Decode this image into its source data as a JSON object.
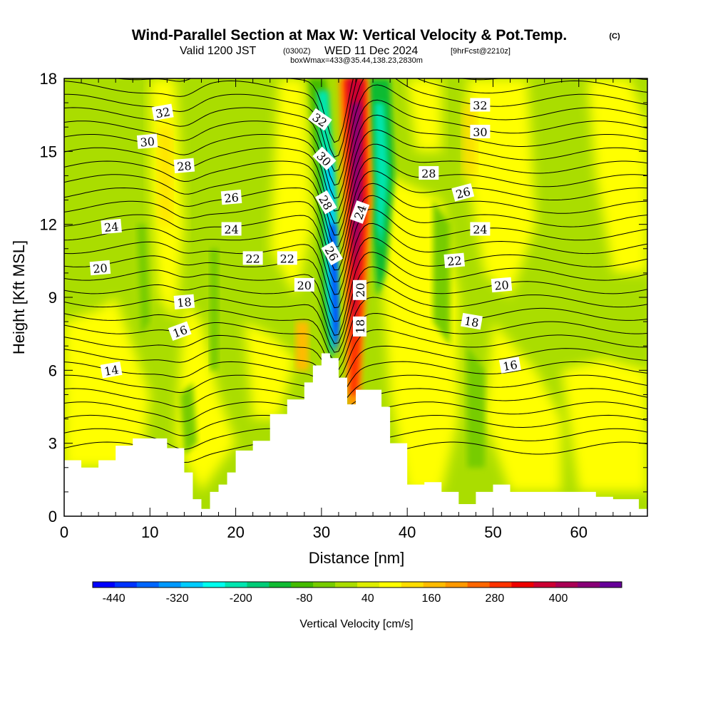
{
  "title": {
    "main": "Wind-Parallel Section at Max W: Vertical Velocity & Pot.Temp.",
    "copyright": "(C)",
    "valid_prefix": "Valid 1200 JST",
    "valid_utc": "(0300Z)",
    "valid_date": "WED 11 Dec 2024",
    "forecast": "[9hrFcst@2210z]",
    "box": "boxWmax=433@35.44,138.23,2830m"
  },
  "chart_data": {
    "type": "heatmap",
    "xlabel": "Distance [nm]",
    "ylabel": "Height [Kft MSL]",
    "xlim": [
      0,
      68
    ],
    "ylim": [
      0,
      18
    ],
    "x_ticks": [
      0,
      10,
      20,
      30,
      40,
      50,
      60
    ],
    "y_ticks": [
      0,
      3,
      6,
      9,
      12,
      15,
      18
    ],
    "colorbar": {
      "label": "Vertical Velocity [cm/s]",
      "tick_labels": [
        "-440",
        "-320",
        "-200",
        "-80",
        "40",
        "160",
        "280",
        "400"
      ],
      "tick_values": [
        -440,
        -320,
        -200,
        -80,
        40,
        160,
        280,
        400
      ],
      "range": [
        -480,
        520
      ],
      "colors": [
        "#0000ff",
        "#0033ff",
        "#0066ff",
        "#0099ff",
        "#00ccff",
        "#00ffee",
        "#00e6b0",
        "#00cc77",
        "#11bb33",
        "#44bb00",
        "#77cc00",
        "#aadd00",
        "#ddee00",
        "#ffff00",
        "#ffdd00",
        "#ffbb00",
        "#ff9900",
        "#ff6600",
        "#ff3300",
        "#ee0000",
        "#cc0033",
        "#aa0055",
        "#880077",
        "#660099"
      ]
    },
    "velocity_features": [
      {
        "name": "updraft core",
        "x": [
          33,
          36
        ],
        "y": [
          4.5,
          18
        ],
        "max": 433
      },
      {
        "name": "downdraft core",
        "x": [
          29.5,
          32
        ],
        "y": [
          6.2,
          18
        ],
        "min": -440
      }
    ],
    "terrain": {
      "x": [
        0,
        2,
        4,
        6,
        8,
        10,
        12,
        14,
        15,
        16,
        17,
        18,
        19,
        20,
        22,
        24,
        26,
        28,
        29,
        30,
        31,
        32,
        33,
        34,
        36,
        37,
        38,
        40,
        42,
        44,
        46,
        48,
        50,
        52,
        54,
        56,
        58,
        60,
        62,
        64,
        66,
        67,
        68
      ],
      "height": [
        2.3,
        2.0,
        2.3,
        2.9,
        3.2,
        3.2,
        2.8,
        1.8,
        0.7,
        0.3,
        1.0,
        1.3,
        1.8,
        2.7,
        3.1,
        4.2,
        4.8,
        5.5,
        6.2,
        6.7,
        6.5,
        5.7,
        4.6,
        5.2,
        5.2,
        4.5,
        3.0,
        1.3,
        1.4,
        1.0,
        0.5,
        1.0,
        1.3,
        1.0,
        1.0,
        1.0,
        1.0,
        1.0,
        0.8,
        0.7,
        0.7,
        0.3,
        0.3
      ]
    },
    "potential_temperature_labels": [
      {
        "text": "32",
        "x": 11.5,
        "y": 16.6,
        "angle": -10
      },
      {
        "text": "30",
        "x": 9.7,
        "y": 15.4,
        "angle": -5
      },
      {
        "text": "28",
        "x": 14,
        "y": 14.4,
        "angle": -5
      },
      {
        "text": "26",
        "x": 19.5,
        "y": 13.1,
        "angle": -5
      },
      {
        "text": "24",
        "x": 5.5,
        "y": 11.9,
        "angle": -5
      },
      {
        "text": "24",
        "x": 19.5,
        "y": 11.8,
        "angle": 0
      },
      {
        "text": "22",
        "x": 22,
        "y": 10.6,
        "angle": 0
      },
      {
        "text": "22",
        "x": 26,
        "y": 10.6,
        "angle": 0
      },
      {
        "text": "20",
        "x": 4.2,
        "y": 10.2,
        "angle": -5
      },
      {
        "text": "20",
        "x": 28,
        "y": 9.5,
        "angle": 0
      },
      {
        "text": "18",
        "x": 14,
        "y": 8.8,
        "angle": -5
      },
      {
        "text": "16",
        "x": 13.5,
        "y": 7.6,
        "angle": -20
      },
      {
        "text": "14",
        "x": 5.5,
        "y": 6.0,
        "angle": -10
      },
      {
        "text": "32",
        "x": 29.8,
        "y": 16.3,
        "angle": 35
      },
      {
        "text": "30",
        "x": 30.3,
        "y": 14.7,
        "angle": 45
      },
      {
        "text": "28",
        "x": 30.5,
        "y": 12.9,
        "angle": 60
      },
      {
        "text": "26",
        "x": 31.2,
        "y": 10.8,
        "angle": 60
      },
      {
        "text": "24",
        "x": 34.5,
        "y": 12.5,
        "angle": -70
      },
      {
        "text": "20",
        "x": 34.5,
        "y": 9.3,
        "angle": -90
      },
      {
        "text": "18",
        "x": 34.5,
        "y": 7.8,
        "angle": -90
      },
      {
        "text": "32",
        "x": 48.5,
        "y": 16.9,
        "angle": 0
      },
      {
        "text": "30",
        "x": 48.5,
        "y": 15.8,
        "angle": 0
      },
      {
        "text": "28",
        "x": 42.5,
        "y": 14.1,
        "angle": 0
      },
      {
        "text": "26",
        "x": 46.5,
        "y": 13.3,
        "angle": -15
      },
      {
        "text": "24",
        "x": 48.5,
        "y": 11.8,
        "angle": 0
      },
      {
        "text": "22",
        "x": 45.5,
        "y": 10.5,
        "angle": -5
      },
      {
        "text": "20",
        "x": 51,
        "y": 9.5,
        "angle": -5
      },
      {
        "text": "18",
        "x": 47.5,
        "y": 8.0,
        "angle": 10
      },
      {
        "text": "16",
        "x": 52,
        "y": 6.2,
        "angle": -10
      }
    ]
  }
}
